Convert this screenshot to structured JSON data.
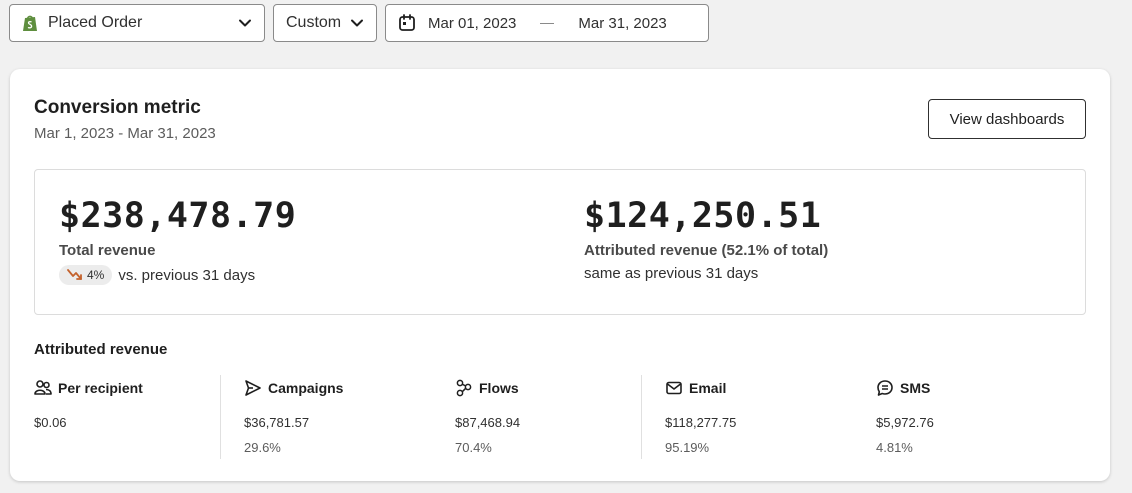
{
  "filters": {
    "metric": "Placed Order",
    "range_type": "Custom",
    "date_start": "Mar 01, 2023",
    "date_end": "Mar 31, 2023"
  },
  "card": {
    "title": "Conversion metric",
    "subtitle": "Mar 1, 2023 - Mar 31, 2023",
    "button": "View dashboards"
  },
  "kpis": {
    "total": {
      "value": "$238,478.79",
      "label": "Total revenue",
      "change": "4%",
      "compare": "vs. previous 31 days",
      "trend": "down"
    },
    "attributed": {
      "value": "$124,250.51",
      "label": "Attributed revenue (52.1% of total)",
      "compare": "same as previous 31 days"
    }
  },
  "attributed_section": {
    "title": "Attributed revenue",
    "metrics": [
      {
        "label": "Per recipient",
        "value": "$0.06",
        "pct": "",
        "icon": "people-icon"
      },
      {
        "label": "Campaigns",
        "value": "$36,781.57",
        "pct": "29.6%",
        "icon": "send-icon"
      },
      {
        "label": "Flows",
        "value": "$87,468.94",
        "pct": "70.4%",
        "icon": "flow-icon"
      },
      {
        "label": "Email",
        "value": "$118,277.75",
        "pct": "95.19%",
        "icon": "email-icon"
      },
      {
        "label": "SMS",
        "value": "$5,972.76",
        "pct": "4.81%",
        "icon": "sms-icon"
      }
    ]
  },
  "colors": {
    "trend_down": "#c4622d",
    "shop_green": "#5e8e3e"
  }
}
